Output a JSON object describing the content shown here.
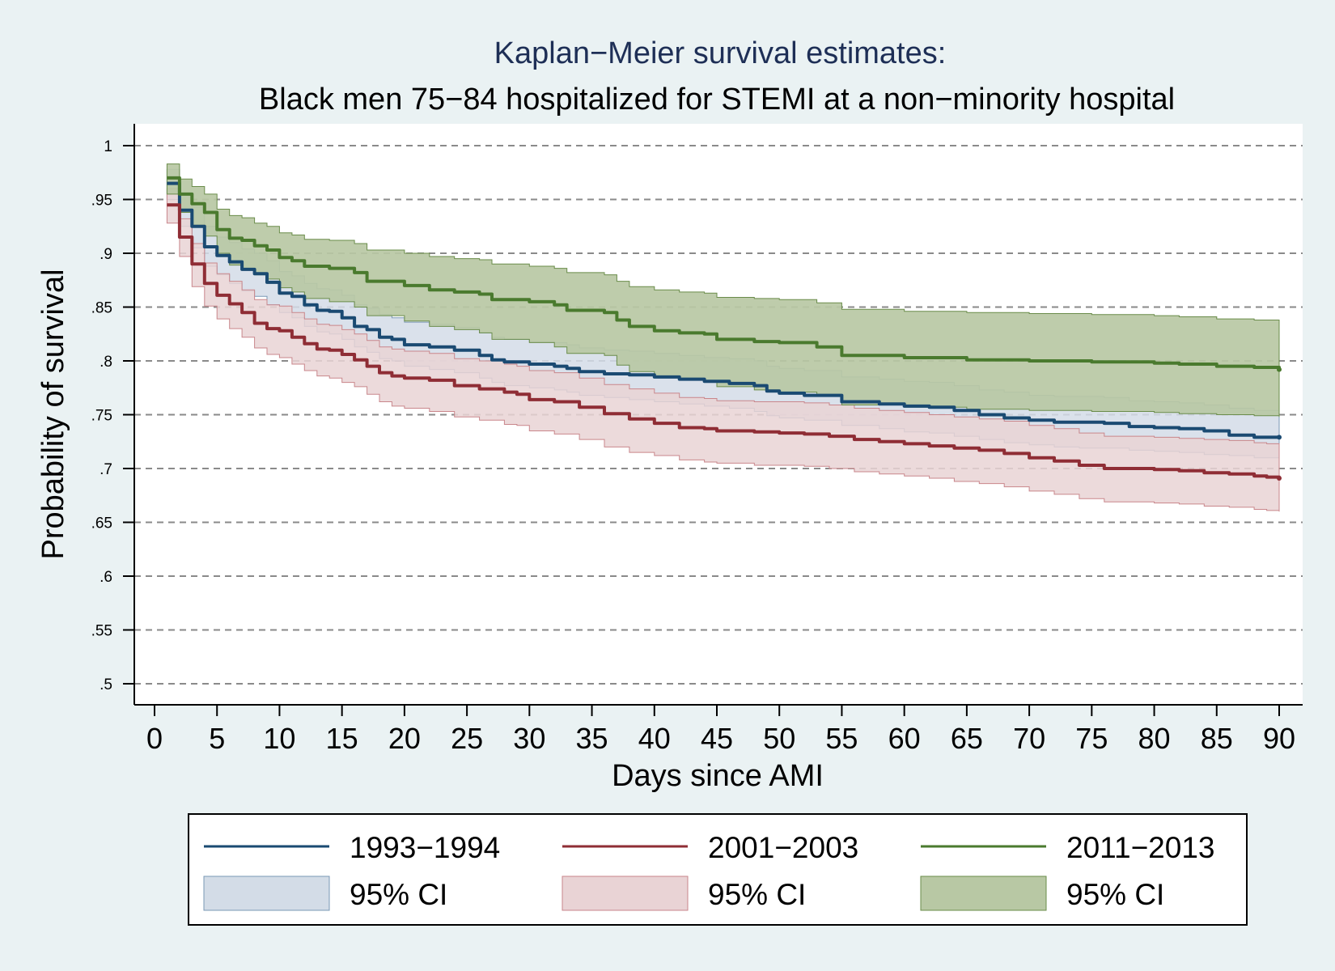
{
  "chart_data": {
    "type": "line",
    "title": "Kaplan−Meier survival estimates:",
    "subtitle": "Black men 75−84 hospitalized for STEMI at a non−minority hospital",
    "xlabel": "Days since AMI",
    "ylabel": "Probability of survival",
    "xlim": [
      0,
      90
    ],
    "ylim": [
      0.5,
      1
    ],
    "x_ticks": [
      0,
      5,
      10,
      15,
      20,
      25,
      30,
      35,
      40,
      45,
      50,
      55,
      60,
      65,
      70,
      75,
      80,
      85,
      90
    ],
    "x_tick_labels": [
      "0",
      "5",
      "10",
      "15",
      "20",
      "25",
      "30",
      "35",
      "40",
      "45",
      "50",
      "55",
      "60",
      "65",
      "70",
      "75",
      "80",
      "85",
      "90"
    ],
    "y_ticks": [
      0.5,
      0.55,
      0.6,
      0.65,
      0.7,
      0.75,
      0.8,
      0.85,
      0.9,
      0.95,
      1
    ],
    "y_tick_labels": [
      ".5",
      ".55",
      ".6",
      ".65",
      ".7",
      ".75",
      ".8",
      ".85",
      ".9",
      ".95",
      "1"
    ],
    "grid": "horizontal dashed",
    "legend_position": "bottom",
    "colors": {
      "background": "#eaf2f3",
      "plot_background": "#ffffff",
      "s1993": "#1a4a72",
      "s2001": "#8f2d35",
      "s2011": "#4a7a2e",
      "ci1993": "#d3dce7",
      "ci2001": "#e9d3d5",
      "ci2011": "#b8c8a4",
      "ci1993_edge": "#7a98b5",
      "ci2001_edge": "#c9868b",
      "ci2011_edge": "#6a8c4a"
    },
    "series": [
      {
        "name": "1993−1994",
        "ci_label": "95% CI",
        "x": [
          1,
          2,
          3,
          4,
          5,
          6,
          7,
          8,
          9,
          10,
          11,
          12,
          13,
          14,
          15,
          16,
          17,
          18,
          19,
          20,
          22,
          24,
          26,
          27,
          28,
          30,
          32,
          33,
          34,
          36,
          38,
          40,
          42,
          44,
          46,
          48,
          49,
          50,
          52,
          55,
          58,
          60,
          62,
          64,
          66,
          68,
          70,
          72,
          74,
          76,
          78,
          80,
          82,
          84,
          86,
          88,
          90
        ],
        "y": [
          0.965,
          0.94,
          0.925,
          0.906,
          0.898,
          0.892,
          0.885,
          0.881,
          0.873,
          0.863,
          0.86,
          0.852,
          0.847,
          0.846,
          0.84,
          0.832,
          0.829,
          0.822,
          0.82,
          0.815,
          0.813,
          0.81,
          0.805,
          0.801,
          0.799,
          0.797,
          0.795,
          0.793,
          0.79,
          0.788,
          0.787,
          0.785,
          0.783,
          0.781,
          0.779,
          0.777,
          0.772,
          0.77,
          0.768,
          0.762,
          0.76,
          0.758,
          0.757,
          0.754,
          0.75,
          0.747,
          0.745,
          0.743,
          0.743,
          0.742,
          0.739,
          0.738,
          0.737,
          0.735,
          0.731,
          0.729,
          0.729
        ],
        "lower": [
          0.95,
          0.925,
          0.905,
          0.888,
          0.88,
          0.872,
          0.865,
          0.86,
          0.852,
          0.845,
          0.84,
          0.832,
          0.827,
          0.825,
          0.82,
          0.813,
          0.808,
          0.802,
          0.8,
          0.795,
          0.792,
          0.789,
          0.784,
          0.78,
          0.777,
          0.775,
          0.773,
          0.771,
          0.768,
          0.766,
          0.764,
          0.762,
          0.76,
          0.758,
          0.756,
          0.753,
          0.749,
          0.747,
          0.745,
          0.74,
          0.737,
          0.734,
          0.733,
          0.73,
          0.727,
          0.724,
          0.722,
          0.72,
          0.719,
          0.719,
          0.717,
          0.716,
          0.715,
          0.713,
          0.712,
          0.71,
          0.71
        ],
        "upper": [
          0.978,
          0.955,
          0.943,
          0.925,
          0.915,
          0.91,
          0.904,
          0.9,
          0.893,
          0.883,
          0.879,
          0.872,
          0.867,
          0.866,
          0.861,
          0.852,
          0.849,
          0.843,
          0.84,
          0.836,
          0.834,
          0.831,
          0.826,
          0.822,
          0.82,
          0.818,
          0.817,
          0.815,
          0.812,
          0.81,
          0.809,
          0.807,
          0.805,
          0.803,
          0.802,
          0.8,
          0.795,
          0.793,
          0.791,
          0.785,
          0.783,
          0.781,
          0.78,
          0.777,
          0.773,
          0.771,
          0.768,
          0.767,
          0.767,
          0.766,
          0.763,
          0.762,
          0.761,
          0.759,
          0.756,
          0.754,
          0.748
        ]
      },
      {
        "name": "2001−2003",
        "ci_label": "95% CI",
        "x": [
          1,
          2,
          3,
          4,
          5,
          6,
          7,
          8,
          9,
          10,
          11,
          12,
          13,
          14,
          15,
          16,
          17,
          18,
          19,
          20,
          22,
          24,
          26,
          28,
          29,
          30,
          32,
          34,
          36,
          38,
          40,
          42,
          44,
          45,
          48,
          50,
          52,
          54,
          56,
          58,
          60,
          62,
          64,
          66,
          68,
          70,
          72,
          74,
          76,
          78,
          80,
          82,
          84,
          86,
          88,
          89,
          90
        ],
        "y": [
          0.945,
          0.915,
          0.89,
          0.872,
          0.861,
          0.853,
          0.845,
          0.835,
          0.83,
          0.828,
          0.822,
          0.816,
          0.811,
          0.81,
          0.806,
          0.801,
          0.795,
          0.789,
          0.786,
          0.784,
          0.782,
          0.777,
          0.774,
          0.771,
          0.769,
          0.764,
          0.762,
          0.757,
          0.751,
          0.746,
          0.742,
          0.738,
          0.737,
          0.735,
          0.734,
          0.733,
          0.732,
          0.73,
          0.727,
          0.725,
          0.723,
          0.721,
          0.719,
          0.717,
          0.714,
          0.71,
          0.707,
          0.703,
          0.7,
          0.7,
          0.699,
          0.698,
          0.696,
          0.695,
          0.693,
          0.692,
          0.691
        ],
        "lower": [
          0.928,
          0.897,
          0.869,
          0.851,
          0.839,
          0.83,
          0.822,
          0.812,
          0.806,
          0.803,
          0.797,
          0.791,
          0.786,
          0.784,
          0.78,
          0.776,
          0.769,
          0.762,
          0.758,
          0.756,
          0.753,
          0.748,
          0.745,
          0.741,
          0.74,
          0.735,
          0.732,
          0.727,
          0.72,
          0.715,
          0.712,
          0.708,
          0.706,
          0.705,
          0.703,
          0.703,
          0.702,
          0.7,
          0.697,
          0.695,
          0.693,
          0.691,
          0.688,
          0.686,
          0.683,
          0.679,
          0.676,
          0.672,
          0.669,
          0.669,
          0.668,
          0.667,
          0.665,
          0.664,
          0.662,
          0.661,
          0.66
        ],
        "upper": [
          0.96,
          0.932,
          0.909,
          0.891,
          0.881,
          0.874,
          0.866,
          0.857,
          0.852,
          0.851,
          0.845,
          0.839,
          0.834,
          0.833,
          0.829,
          0.825,
          0.819,
          0.813,
          0.811,
          0.809,
          0.807,
          0.802,
          0.8,
          0.797,
          0.795,
          0.791,
          0.789,
          0.784,
          0.778,
          0.774,
          0.77,
          0.766,
          0.765,
          0.763,
          0.762,
          0.762,
          0.761,
          0.759,
          0.756,
          0.754,
          0.752,
          0.75,
          0.748,
          0.746,
          0.744,
          0.74,
          0.737,
          0.733,
          0.73,
          0.73,
          0.729,
          0.728,
          0.727,
          0.726,
          0.724,
          0.723,
          0.719
        ]
      },
      {
        "name": "2011−2013",
        "ci_label": "95% CI",
        "x": [
          1,
          2,
          3,
          4,
          5,
          6,
          7,
          8,
          9,
          10,
          11,
          12,
          14,
          16,
          17,
          20,
          22,
          24,
          26,
          27,
          30,
          32,
          33,
          36,
          37,
          38,
          40,
          42,
          44,
          45,
          48,
          50,
          53,
          55,
          60,
          65,
          70,
          75,
          80,
          82,
          85,
          88,
          90
        ],
        "y": [
          0.97,
          0.955,
          0.946,
          0.938,
          0.922,
          0.914,
          0.912,
          0.907,
          0.903,
          0.896,
          0.893,
          0.888,
          0.886,
          0.882,
          0.874,
          0.87,
          0.866,
          0.864,
          0.862,
          0.857,
          0.855,
          0.852,
          0.847,
          0.845,
          0.838,
          0.832,
          0.828,
          0.826,
          0.825,
          0.82,
          0.818,
          0.817,
          0.813,
          0.805,
          0.803,
          0.801,
          0.8,
          0.799,
          0.798,
          0.797,
          0.795,
          0.794,
          0.792
        ],
        "lower": [
          0.955,
          0.938,
          0.926,
          0.916,
          0.9,
          0.889,
          0.886,
          0.88,
          0.876,
          0.868,
          0.864,
          0.858,
          0.855,
          0.85,
          0.842,
          0.837,
          0.832,
          0.829,
          0.826,
          0.82,
          0.817,
          0.813,
          0.807,
          0.805,
          0.796,
          0.79,
          0.785,
          0.783,
          0.781,
          0.776,
          0.773,
          0.771,
          0.767,
          0.759,
          0.757,
          0.755,
          0.754,
          0.753,
          0.752,
          0.751,
          0.75,
          0.749,
          0.748
        ],
        "upper": [
          0.983,
          0.969,
          0.962,
          0.955,
          0.941,
          0.935,
          0.933,
          0.928,
          0.925,
          0.919,
          0.917,
          0.913,
          0.912,
          0.909,
          0.903,
          0.9,
          0.897,
          0.895,
          0.894,
          0.89,
          0.888,
          0.886,
          0.882,
          0.88,
          0.874,
          0.869,
          0.866,
          0.864,
          0.863,
          0.859,
          0.858,
          0.857,
          0.854,
          0.848,
          0.846,
          0.845,
          0.844,
          0.843,
          0.842,
          0.841,
          0.839,
          0.838,
          0.836
        ]
      }
    ]
  }
}
